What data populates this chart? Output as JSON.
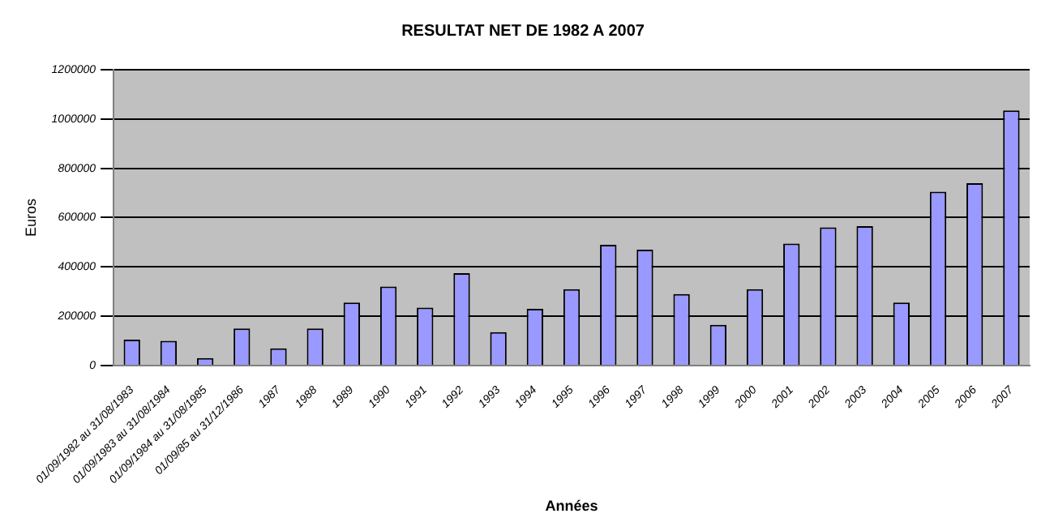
{
  "chart_data": {
    "type": "bar",
    "title": "RESULTAT NET DE 1982 A 2007",
    "xlabel": "Années",
    "ylabel": "Euros",
    "categories": [
      "01/09/1982 au 31/08/1983",
      "01/09/1983 au 31/08/1984",
      "01/09/1984 au 31/08/1985",
      "01/09/85 au 31/12/1986",
      "1987",
      "1988",
      "1989",
      "1990",
      "1991",
      "1992",
      "1993",
      "1994",
      "1995",
      "1996",
      "1997",
      "1998",
      "1999",
      "2000",
      "2001",
      "2002",
      "2003",
      "2004",
      "2005",
      "2006",
      "2007"
    ],
    "values": [
      105000,
      100000,
      30000,
      150000,
      70000,
      150000,
      255000,
      320000,
      235000,
      375000,
      135000,
      230000,
      310000,
      490000,
      470000,
      290000,
      165000,
      310000,
      495000,
      560000,
      565000,
      255000,
      705000,
      740000,
      1035000
    ],
    "color": "#9999ff",
    "ylim": [
      0,
      1200000
    ],
    "yticks": [
      0,
      200000,
      400000,
      600000,
      800000,
      1000000,
      1200000
    ],
    "grid": "y",
    "legend": false
  }
}
